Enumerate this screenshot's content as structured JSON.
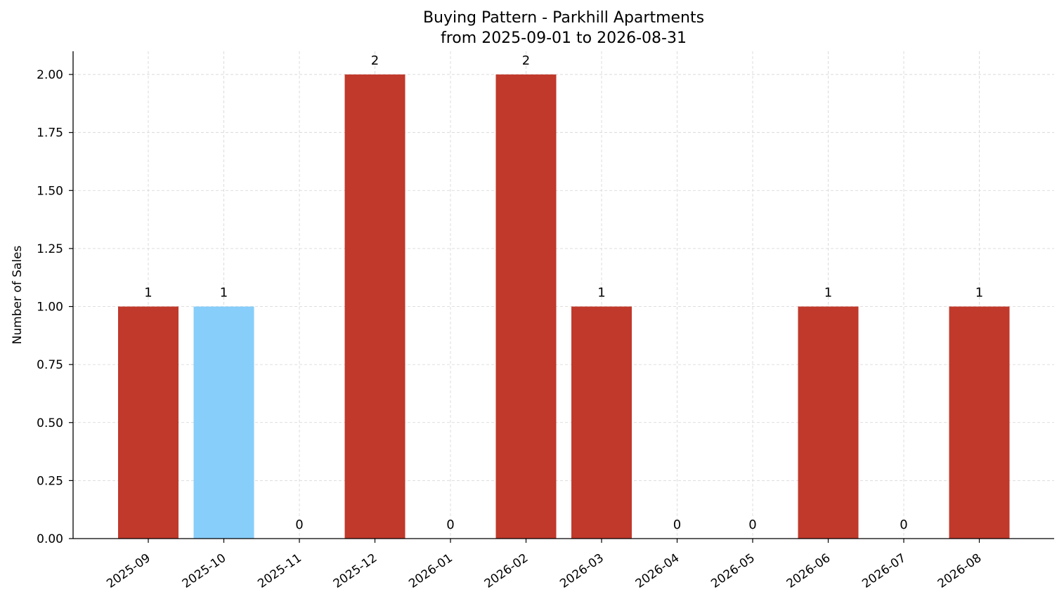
{
  "chart_data": {
    "type": "bar",
    "title": "Buying Pattern - Parkhill Apartments",
    "subtitle": "from 2025-09-01 to 2026-08-31",
    "xlabel": "",
    "ylabel": "Number of Sales",
    "ylim": [
      0,
      2.1
    ],
    "yticks": [
      "0.00",
      "0.25",
      "0.50",
      "0.75",
      "1.00",
      "1.25",
      "1.50",
      "1.75",
      "2.00"
    ],
    "categories": [
      "2025-09",
      "2025-10",
      "2025-11",
      "2025-12",
      "2026-01",
      "2026-02",
      "2026-03",
      "2026-04",
      "2026-05",
      "2026-06",
      "2026-07",
      "2026-08"
    ],
    "values": [
      1,
      1,
      0,
      2,
      0,
      2,
      1,
      0,
      0,
      1,
      0,
      1
    ],
    "value_labels": [
      "1",
      "1",
      "0",
      "2",
      "0",
      "2",
      "1",
      "0",
      "0",
      "1",
      "0",
      "1"
    ],
    "bar_colors": [
      "#c0392b",
      "#87cefa",
      "#c0392b",
      "#c0392b",
      "#c0392b",
      "#c0392b",
      "#c0392b",
      "#c0392b",
      "#c0392b",
      "#c0392b",
      "#c0392b",
      "#c0392b"
    ],
    "grid": true,
    "legend": "none"
  }
}
